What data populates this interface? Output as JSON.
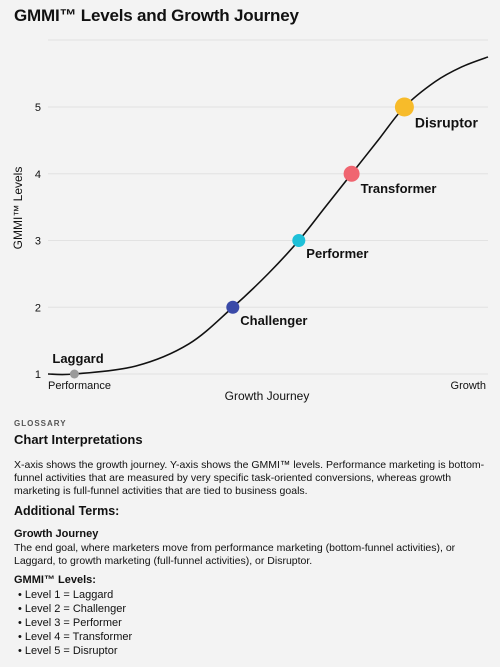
{
  "title": "GMMI™ Levels and Growth Journey",
  "chart_data": {
    "type": "line",
    "ylabel": "GMMI™ Levels",
    "xlabel": "Growth Journey",
    "x_start_label": "Performance",
    "x_end_label": "Growth",
    "yticks": [
      1,
      2,
      3,
      4,
      5
    ],
    "ylim": [
      1,
      5.75
    ],
    "xlim": [
      0,
      1
    ],
    "grid": "horizontal",
    "points": [
      {
        "label": "Laggard",
        "x": 0.06,
        "y": 1,
        "color": "#9a9a9a",
        "size": "small"
      },
      {
        "label": "Challenger",
        "x": 0.42,
        "y": 2,
        "color": "#3a4aa8",
        "size": "medium"
      },
      {
        "label": "Performer",
        "x": 0.57,
        "y": 3,
        "color": "#1ec0d8",
        "size": "medium"
      },
      {
        "label": "Transformer",
        "x": 0.69,
        "y": 4,
        "color": "#f06570",
        "size": "large"
      },
      {
        "label": "Disruptor",
        "x": 0.81,
        "y": 5,
        "color": "#f7bb2a",
        "size": "xlarge"
      }
    ],
    "curve": [
      [
        0.0,
        1.0
      ],
      [
        0.06,
        1.0
      ],
      [
        0.2,
        1.12
      ],
      [
        0.32,
        1.45
      ],
      [
        0.42,
        2.0
      ],
      [
        0.5,
        2.5
      ],
      [
        0.57,
        3.0
      ],
      [
        0.63,
        3.5
      ],
      [
        0.69,
        4.0
      ],
      [
        0.75,
        4.5
      ],
      [
        0.81,
        5.0
      ],
      [
        0.88,
        5.38
      ],
      [
        0.94,
        5.6
      ],
      [
        1.0,
        5.75
      ]
    ]
  },
  "glossary": {
    "tag": "GLOSSARY",
    "heading": "Chart Interpretations",
    "paragraph": "X-axis shows the growth journey. Y-axis shows the GMMI™ levels. Performance marketing is bottom-funnel activities that are measured by very specific task-oriented conversions, whereas growth marketing is full-funnel activities that are tied to business goals.",
    "additional_terms": "Additional Terms:",
    "growth_journey_title": "Growth Journey",
    "growth_journey_text": "The end goal, where marketers move from performance marketing (bottom-funnel activities), or Laggard, to growth marketing (full-funnel activities), or Disruptor.",
    "levels_title": "GMMI™ Levels:",
    "levels": [
      "Level 1 = Laggard",
      "Level 2 = Challenger",
      "Level 3 = Performer",
      "Level 4 = Transformer",
      "Level 5 = Disruptor"
    ]
  }
}
